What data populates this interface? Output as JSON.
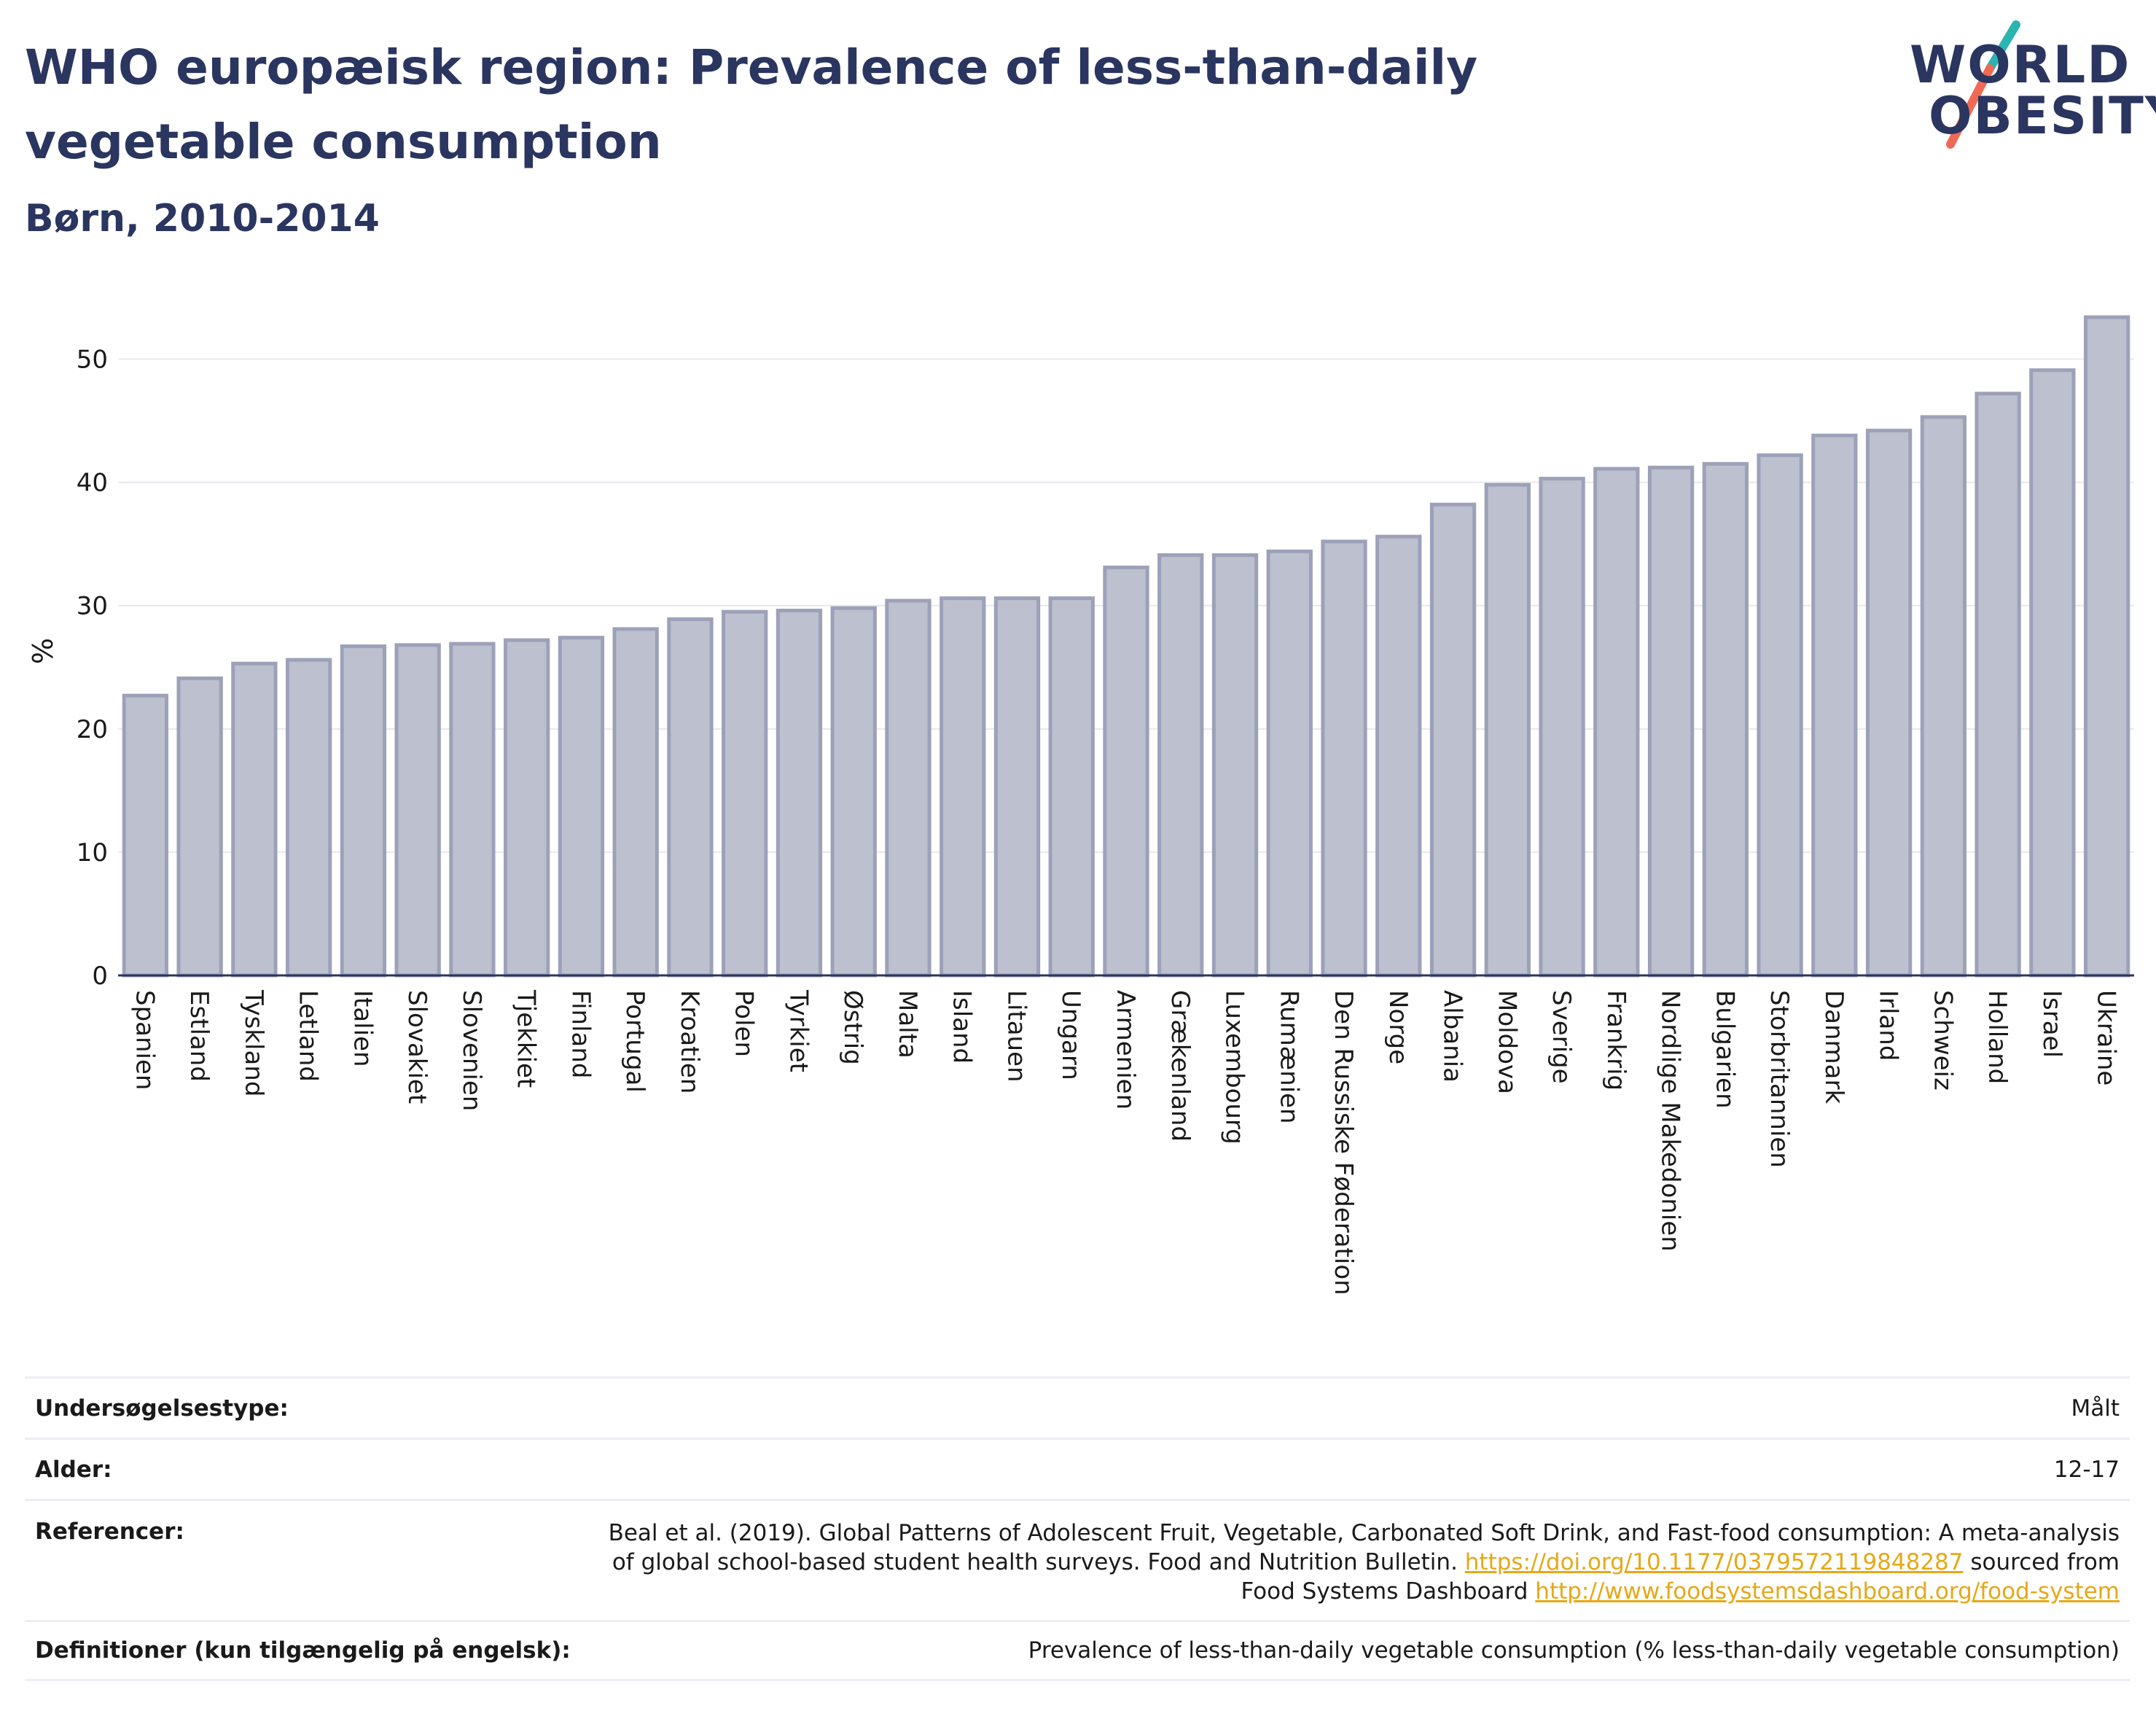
{
  "header": {
    "title": "WHO europæisk region: Prevalence of less-than-daily vegetable consumption",
    "subtitle": "Børn, 2010-2014"
  },
  "logo": {
    "line1": "WORLD",
    "line2": "OBESITY",
    "text_color": "#2a3560",
    "accent_teal": "#2bb5b0",
    "accent_coral": "#ef6a55"
  },
  "chart_data": {
    "type": "bar",
    "ylabel": "%",
    "xlabel": "",
    "ylim": [
      0,
      55
    ],
    "yticks": [
      0,
      10,
      20,
      30,
      40,
      50
    ],
    "grid": true,
    "bar_fill": "#bcc0cf",
    "bar_stroke": "#9da1b8",
    "categories": [
      "Spanien",
      "Estland",
      "Tyskland",
      "Letland",
      "Italien",
      "Slovakiet",
      "Slovenien",
      "Tjekkiet",
      "Finland",
      "Portugal",
      "Kroatien",
      "Polen",
      "Tyrkiet",
      "Østrig",
      "Malta",
      "Island",
      "Litauen",
      "Ungarn",
      "Armenien",
      "Grækenland",
      "Luxembourg",
      "Rumænien",
      "Den Russiske Føderation",
      "Norge",
      "Albania",
      "Moldova",
      "Sverige",
      "Frankrig",
      "Nordlige Makedonien",
      "Bulgarien",
      "Storbritannien",
      "Danmark",
      "Irland",
      "Schweiz",
      "Holland",
      "Israel",
      "Ukraine"
    ],
    "values": [
      22.7,
      24.1,
      25.3,
      25.6,
      26.7,
      26.8,
      26.9,
      27.2,
      27.4,
      28.1,
      28.9,
      29.5,
      29.6,
      29.8,
      30.4,
      30.6,
      30.6,
      30.6,
      33.1,
      34.1,
      34.1,
      34.4,
      35.2,
      35.6,
      38.2,
      39.8,
      40.3,
      41.1,
      41.2,
      41.5,
      42.2,
      43.8,
      44.2,
      45.3,
      47.2,
      49.1,
      53.4
    ]
  },
  "meta": {
    "survey_type_label": "Undersøgelsestype:",
    "survey_type_value": "Målt",
    "age_label": "Alder:",
    "age_value": "12-17",
    "references_label": "Referencer:",
    "references_text_1": "Beal et al. (2019). Global Patterns of Adolescent Fruit, Vegetable, Carbonated Soft Drink, and Fast-food consumption: A meta-analysis of global school-based student health surveys. Food and Nutrition Bulletin.",
    "references_link_1": "https://doi.org/10.1177/0379572119848287",
    "references_text_2": "sourced from Food Systems Dashboard",
    "references_link_2": "http://www.foodsystemsdashboard.org/food-system",
    "definitions_label": "Definitioner (kun tilgængelig på engelsk):",
    "definitions_value": "Prevalence of less-than-daily vegetable consumption (% less-than-daily vegetable consumption)"
  }
}
